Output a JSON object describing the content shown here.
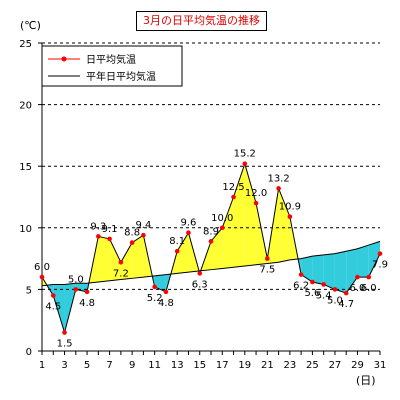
{
  "chart_data": {
    "type": "line",
    "title": "3月の日平均気温の推移",
    "ylabel": "(℃)",
    "xlabel": "(日)",
    "ylim": [
      0,
      25
    ],
    "yticks": [
      0,
      5,
      10,
      15,
      20,
      25
    ],
    "xlim": [
      1,
      31
    ],
    "xticks": [
      1,
      3,
      5,
      7,
      9,
      11,
      13,
      15,
      17,
      19,
      21,
      23,
      25,
      27,
      29,
      31
    ],
    "grid": "horizontal-dashed",
    "legend_position": "top-left",
    "x": [
      1,
      2,
      3,
      4,
      5,
      6,
      7,
      8,
      9,
      10,
      11,
      12,
      13,
      14,
      15,
      16,
      17,
      18,
      19,
      20,
      21,
      22,
      23,
      24,
      25,
      26,
      27,
      28,
      29,
      30,
      31
    ],
    "series": [
      {
        "name": "日平均気温",
        "values": [
          6.0,
          4.5,
          1.5,
          5.0,
          4.8,
          9.3,
          9.1,
          7.2,
          8.8,
          9.4,
          5.2,
          4.8,
          8.1,
          9.6,
          6.3,
          8.9,
          10.0,
          12.5,
          15.2,
          12.0,
          7.5,
          13.2,
          10.9,
          6.2,
          5.6,
          5.4,
          5.0,
          4.7,
          6.0,
          6.0,
          7.9
        ],
        "labels": [
          "6.0",
          "4.5",
          "1.5",
          "5.0",
          "4.8",
          "9.3",
          "9.1",
          "7.2",
          "8.8",
          "9.4",
          "5.2",
          "4.8",
          "8.1",
          "9.6",
          "6.3",
          "8.9",
          "10.0",
          "12.5",
          "15.2",
          "12.0",
          "7.5",
          "13.2",
          "10.9",
          "6.2",
          "5.6",
          "5.4",
          "5.0",
          "4.7",
          "6.0",
          "6.0",
          "7.9"
        ],
        "color": "#ff0000"
      },
      {
        "name": "平年日平均気温",
        "values": [
          5.3,
          5.4,
          5.4,
          5.5,
          5.5,
          5.6,
          5.7,
          5.8,
          5.9,
          6.0,
          6.1,
          6.2,
          6.3,
          6.4,
          6.5,
          6.6,
          6.7,
          6.8,
          6.9,
          7.0,
          7.1,
          7.2,
          7.4,
          7.5,
          7.7,
          7.8,
          7.9,
          8.1,
          8.3,
          8.6,
          8.9
        ],
        "color": "#000000"
      }
    ],
    "fill_above": "#ffff33",
    "fill_below": "#33ccdd"
  }
}
